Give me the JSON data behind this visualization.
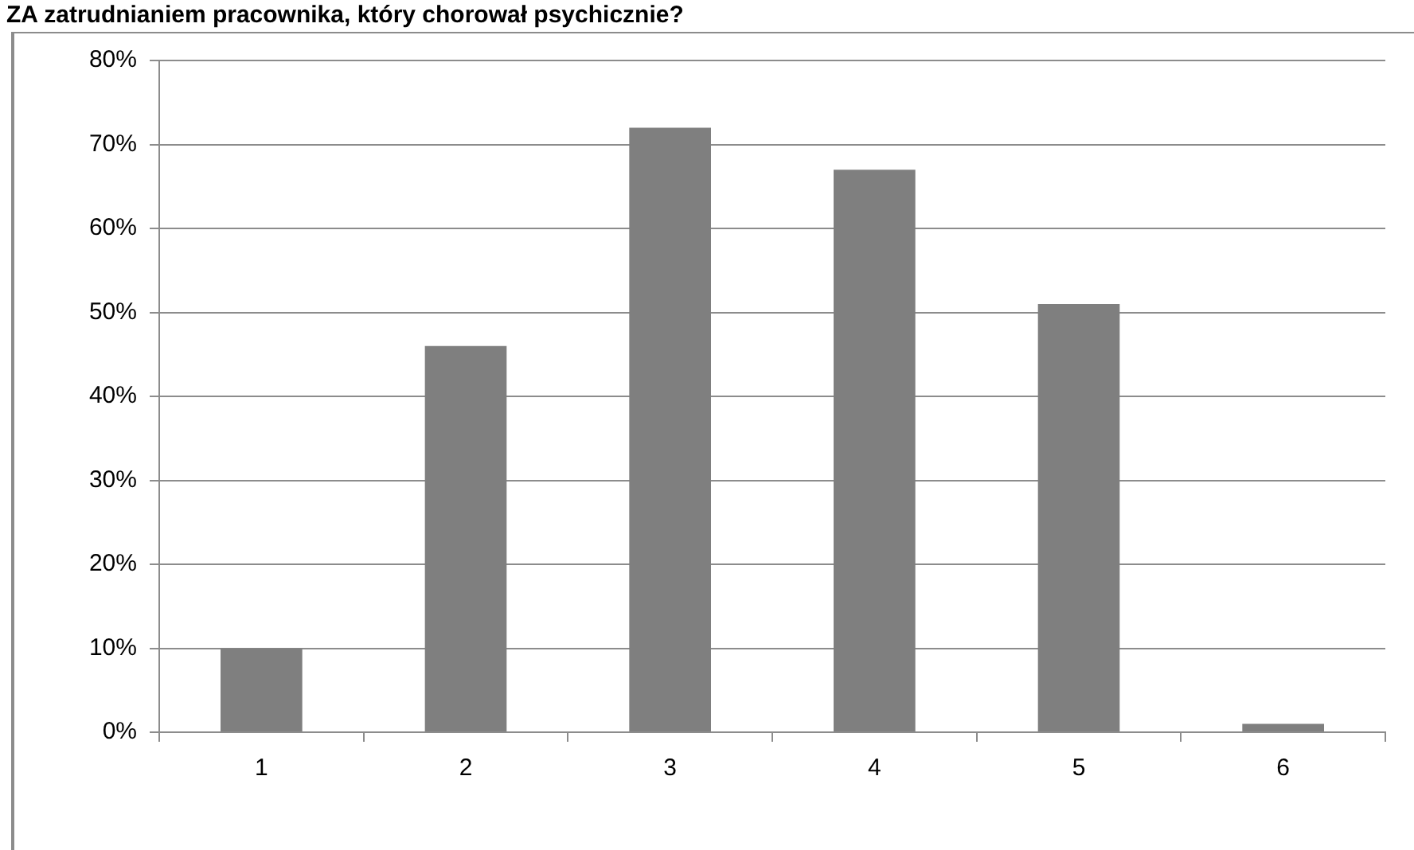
{
  "chart_data": {
    "type": "bar",
    "title": "ZA zatrudnianiem pracownika, który chorował psychicznie?",
    "categories": [
      "1",
      "2",
      "3",
      "4",
      "5",
      "6"
    ],
    "values": [
      10,
      46,
      72,
      67,
      51,
      1
    ],
    "color": "#7f7f7f",
    "ylim": [
      0,
      80
    ],
    "yticks": [
      {
        "value": 0,
        "label": "0%"
      },
      {
        "value": 10,
        "label": "10%"
      },
      {
        "value": 20,
        "label": "20%"
      },
      {
        "value": 30,
        "label": "30%"
      },
      {
        "value": 40,
        "label": "40%"
      },
      {
        "value": 50,
        "label": "50%"
      },
      {
        "value": 60,
        "label": "60%"
      },
      {
        "value": 70,
        "label": "70%"
      },
      {
        "value": 80,
        "label": "80%"
      }
    ],
    "grid": "y"
  }
}
